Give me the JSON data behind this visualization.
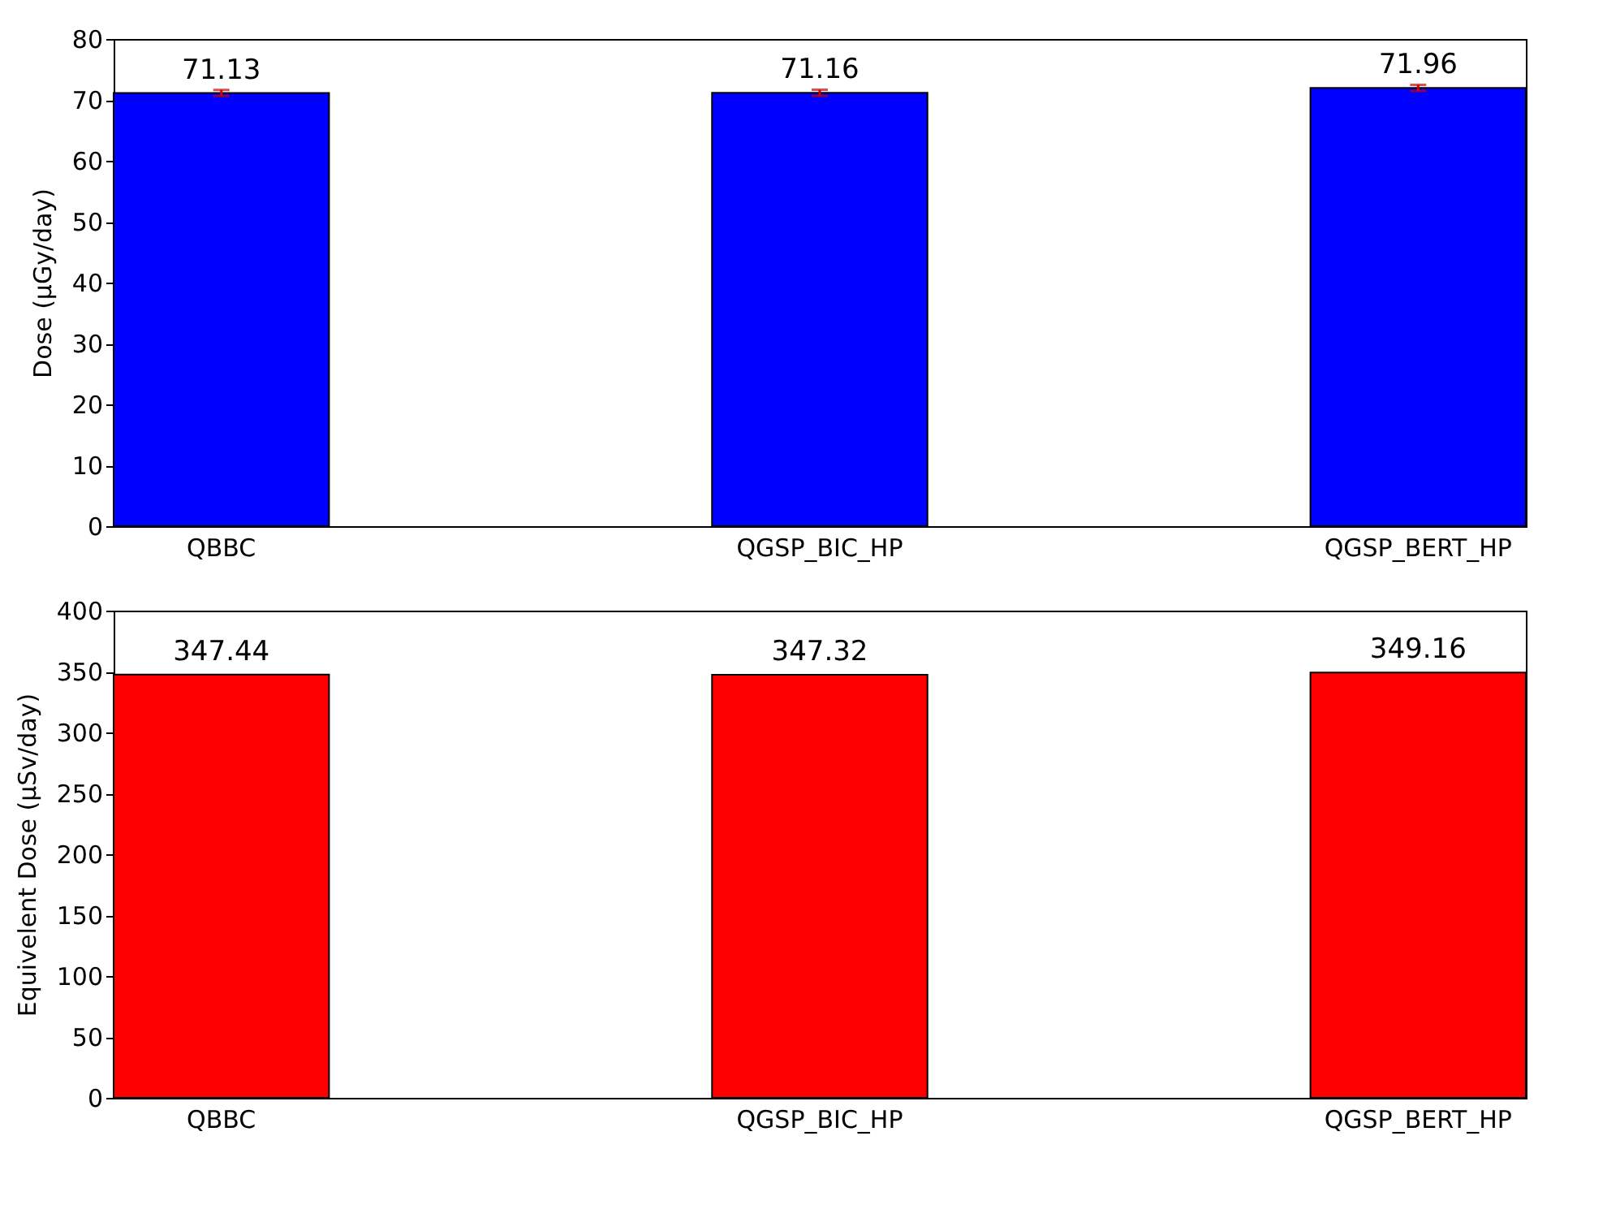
{
  "chart_data": [
    {
      "type": "bar",
      "ylabel": "Dose (μGy/day)",
      "categories": [
        "QBBC",
        "QGSP_BIC_HP",
        "QGSP_BERT_HP"
      ],
      "series": [
        {
          "color": "#0000ff",
          "values": [
            71.13,
            71.16,
            71.96
          ],
          "errors": [
            0.5,
            0.5,
            0.5
          ]
        }
      ],
      "ylim": [
        0,
        80
      ],
      "yticks": [
        0,
        10,
        20,
        30,
        40,
        50,
        60,
        70,
        80
      ],
      "data_labels": true,
      "grid": false,
      "legend": false
    },
    {
      "type": "bar",
      "ylabel": "Equivelent Dose (μSv/day)",
      "categories": [
        "QBBC",
        "QGSP_BIC_HP",
        "QGSP_BERT_HP"
      ],
      "series": [
        {
          "color": "#ff0000",
          "values": [
            347.44,
            347.32,
            349.16
          ]
        }
      ],
      "ylim": [
        0,
        400
      ],
      "yticks": [
        0,
        50,
        100,
        150,
        200,
        250,
        300,
        350,
        400
      ],
      "data_labels": true,
      "grid": false,
      "legend": false
    }
  ]
}
